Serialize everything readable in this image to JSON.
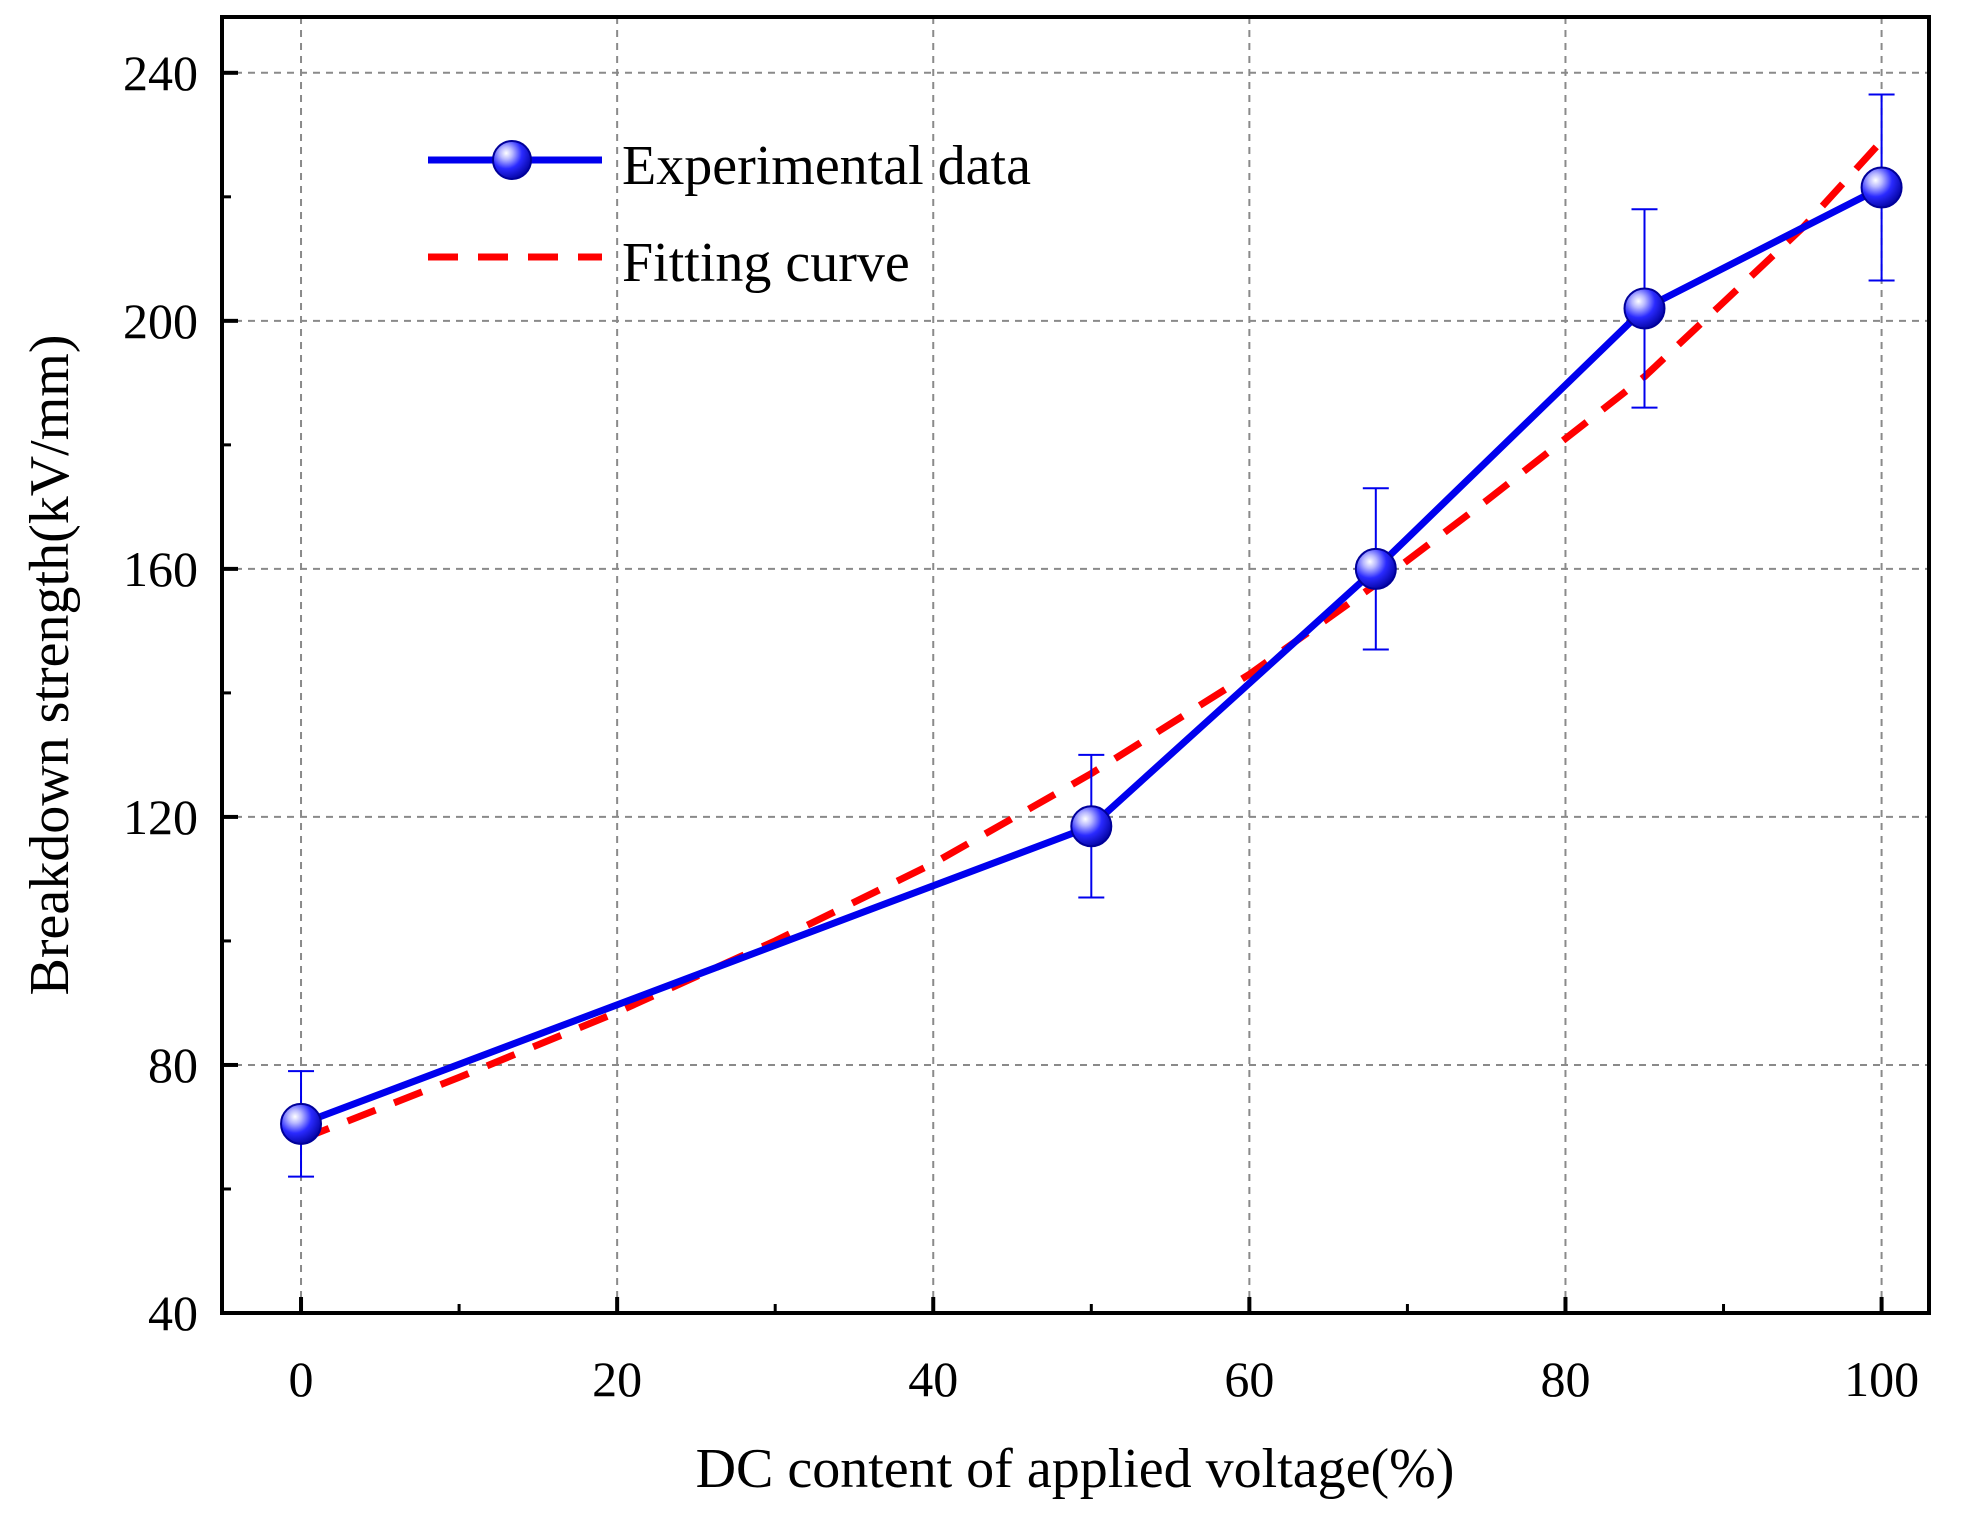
{
  "chart_data": {
    "type": "line",
    "xlabel": "DC content of applied voltage(%)",
    "ylabel": "Breakdown strength(kV/mm)",
    "xlim": [
      -5,
      103
    ],
    "ylim": [
      40,
      249
    ],
    "xticks": [
      0,
      20,
      40,
      60,
      80,
      100
    ],
    "yticks": [
      40,
      80,
      120,
      160,
      200,
      240
    ],
    "grid": true,
    "legend_position": "top-left",
    "series": [
      {
        "name": "Experimental data",
        "style": "solid line with sphere markers and error bars",
        "color": "#0000ee",
        "x": [
          0,
          50,
          68,
          85,
          100
        ],
        "y": [
          70.5,
          118.5,
          160,
          202,
          221.5
        ],
        "error": [
          8.5,
          11.5,
          13,
          16,
          15
        ]
      },
      {
        "name": "Fitting curve",
        "style": "dashed line",
        "color": "#ff0000",
        "x": [
          0,
          10,
          20,
          30,
          40,
          50,
          60,
          68,
          75,
          80,
          85,
          90,
          95,
          100
        ],
        "y": [
          68,
          78,
          88.5,
          100,
          112.5,
          127,
          143,
          157.5,
          171,
          181,
          191,
          203,
          215,
          229
        ]
      }
    ]
  }
}
